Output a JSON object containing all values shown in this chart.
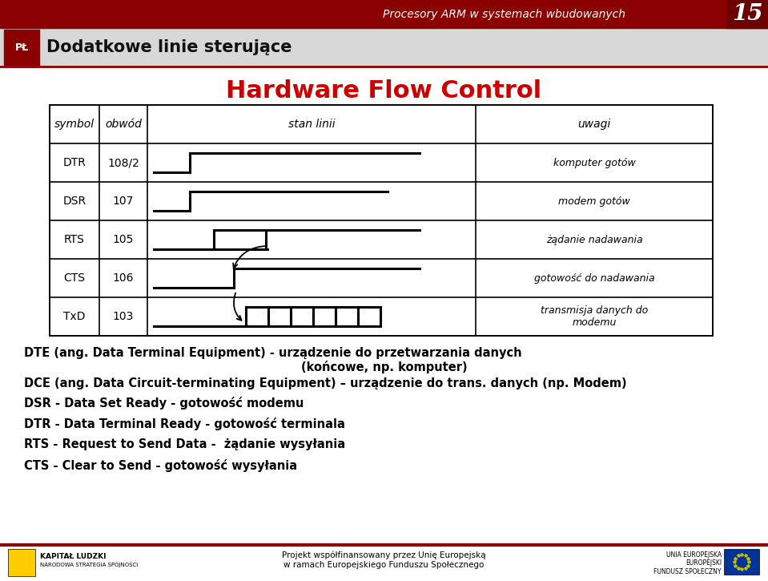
{
  "title_top": "Procesory ARM w systemach wbudowanych",
  "slide_number": "15",
  "section_title": "Dodatkowe linie sterujące",
  "main_title": "Hardware Flow Control",
  "bg_color": "#ffffff",
  "red_color": "#cc0000",
  "dark_red": "#8b0000",
  "table_headers": [
    "symbol",
    "obwód",
    "stan linii",
    "uwagi"
  ],
  "table_rows": [
    [
      "DTR",
      "108/2",
      "komputer gotów"
    ],
    [
      "DSR",
      "107",
      "modem gotów"
    ],
    [
      "RTS",
      "105",
      "żądanie nadawania"
    ],
    [
      "CTS",
      "106",
      "gotowość do nadawania"
    ],
    [
      "TxD",
      "103",
      "transmisja danych do\nmodemu"
    ]
  ],
  "body_texts": [
    "DTE (ang. Data Terminal Equipment) - urządzenie do przetwarzania danych",
    "(końcowe, np. komputer)",
    "DCE (ang. Data Circuit-terminating Equipment) – urządzenie do trans. danych (np. Modem)",
    "DSR - Data Set Ready - gotowość modemu",
    "DTR - Data Terminal Ready - gotowość terminala",
    "RTS - Request to Send Data -  żądanie wysyłania",
    "CTS - Clear to Send - gotowość wysyłania"
  ],
  "footer_text": "Projekt współfinansowany przez Unię Europejską\nw ramach Europejskiego Funduszu Społecznego",
  "footer_left": "KAPITAŁ LUDZKI\nNARODOWA STRATEGIA SPÓJNOŚCI",
  "footer_right": "UNIA EUROPEJSKA\nEUROPEJSKI\nFUNDUSZ SPOŁECZNY"
}
